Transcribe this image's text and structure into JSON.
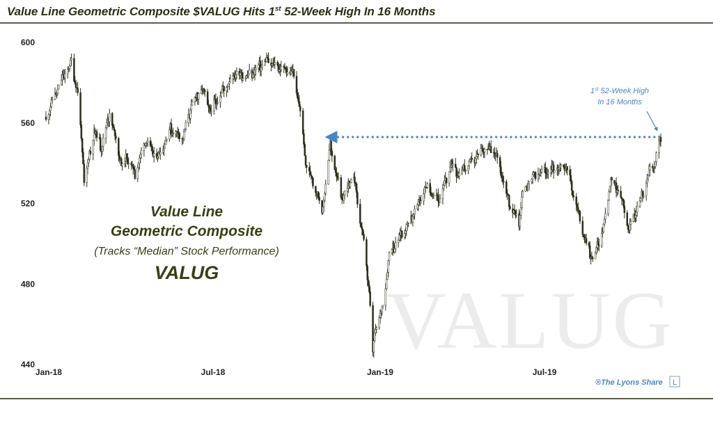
{
  "header": {
    "title_before": "Value Line Geometric Composite $VALUG Hits 1",
    "title_sup": "st",
    "title_after": " 52-Week High In 16 Months"
  },
  "annotation": {
    "line1": "Value Line",
    "line2": "Geometric Composite",
    "line3": "(Tracks “Median” Stock Performance)",
    "line4": "VALUG"
  },
  "callout": {
    "line1_pre": "1",
    "line1_sup": "st",
    "line1_post": " 52-Week High",
    "line2": "In 16 Months"
  },
  "watermark": "VALUG",
  "credit": {
    "text": "®The Lyons Share",
    "logo": "L"
  },
  "colors": {
    "price": "#2b2f1a",
    "arrow": "#4a86c5",
    "title": "#2b3012"
  },
  "chart_data": {
    "type": "line",
    "style": "daily candlestick (OHLC) price series",
    "y_ticks": [
      600,
      560,
      520,
      480,
      440
    ],
    "ylim": [
      440,
      600
    ],
    "x_ticks": [
      "Jan-18",
      "Jul-18",
      "Jan-19",
      "Jul-19"
    ],
    "x_start": "2017-12-29",
    "x_end": "2019-11-06",
    "grid": false,
    "series": [
      {
        "values": [
          [
            "2017-12-29",
            563
          ],
          [
            "2018-01-08",
            574
          ],
          [
            "2018-01-17",
            583
          ],
          [
            "2018-01-26",
            590
          ],
          [
            "2018-02-02",
            575
          ],
          [
            "2018-02-08",
            540
          ],
          [
            "2018-02-09",
            530
          ],
          [
            "2018-02-20",
            556
          ],
          [
            "2018-02-28",
            548
          ],
          [
            "2018-03-09",
            565
          ],
          [
            "2018-03-23",
            538
          ],
          [
            "2018-03-28",
            543
          ],
          [
            "2018-04-06",
            535
          ],
          [
            "2018-04-18",
            552
          ],
          [
            "2018-04-25",
            545
          ],
          [
            "2018-05-03",
            544
          ],
          [
            "2018-05-15",
            557
          ],
          [
            "2018-05-29",
            553
          ],
          [
            "2018-06-08",
            570
          ],
          [
            "2018-06-19",
            577
          ],
          [
            "2018-06-28",
            566
          ],
          [
            "2018-07-10",
            575
          ],
          [
            "2018-07-26",
            585
          ],
          [
            "2018-08-08",
            583
          ],
          [
            "2018-08-29",
            591
          ],
          [
            "2018-09-10",
            588
          ],
          [
            "2018-09-27",
            585
          ],
          [
            "2018-10-05",
            566
          ],
          [
            "2018-10-11",
            540
          ],
          [
            "2018-10-24",
            525
          ],
          [
            "2018-10-29",
            515
          ],
          [
            "2018-11-07",
            549
          ],
          [
            "2018-11-13",
            536
          ],
          [
            "2018-11-20",
            522
          ],
          [
            "2018-11-23",
            525
          ],
          [
            "2018-12-03",
            534
          ],
          [
            "2018-12-07",
            521
          ],
          [
            "2018-12-14",
            500
          ],
          [
            "2018-12-20",
            476
          ],
          [
            "2018-12-24",
            446
          ],
          [
            "2018-12-27",
            458
          ],
          [
            "2019-01-04",
            469
          ],
          [
            "2019-01-11",
            495
          ],
          [
            "2019-01-22",
            503
          ],
          [
            "2019-02-05",
            513
          ],
          [
            "2019-02-20",
            528
          ],
          [
            "2019-03-08",
            522
          ],
          [
            "2019-03-20",
            540
          ],
          [
            "2019-03-28",
            535
          ],
          [
            "2019-04-10",
            540
          ],
          [
            "2019-04-26",
            548
          ],
          [
            "2019-05-08",
            545
          ],
          [
            "2019-05-14",
            536
          ],
          [
            "2019-05-23",
            520
          ],
          [
            "2019-06-03",
            511
          ],
          [
            "2019-06-07",
            526
          ],
          [
            "2019-06-20",
            534
          ],
          [
            "2019-07-03",
            536
          ],
          [
            "2019-07-16",
            538
          ],
          [
            "2019-07-25",
            539
          ],
          [
            "2019-08-05",
            519
          ],
          [
            "2019-08-14",
            503
          ],
          [
            "2019-08-23",
            492
          ],
          [
            "2019-09-04",
            508
          ],
          [
            "2019-09-12",
            533
          ],
          [
            "2019-09-24",
            522
          ],
          [
            "2019-10-02",
            507
          ],
          [
            "2019-10-11",
            518
          ],
          [
            "2019-10-18",
            526
          ],
          [
            "2019-10-25",
            536
          ],
          [
            "2019-10-30",
            540
          ],
          [
            "2019-11-06",
            553
          ]
        ]
      }
    ],
    "annotations": [
      {
        "text": "1st 52-Week High In 16 Months",
        "level": 553,
        "from": "2018-11-01",
        "to": "2019-11-06"
      }
    ]
  }
}
